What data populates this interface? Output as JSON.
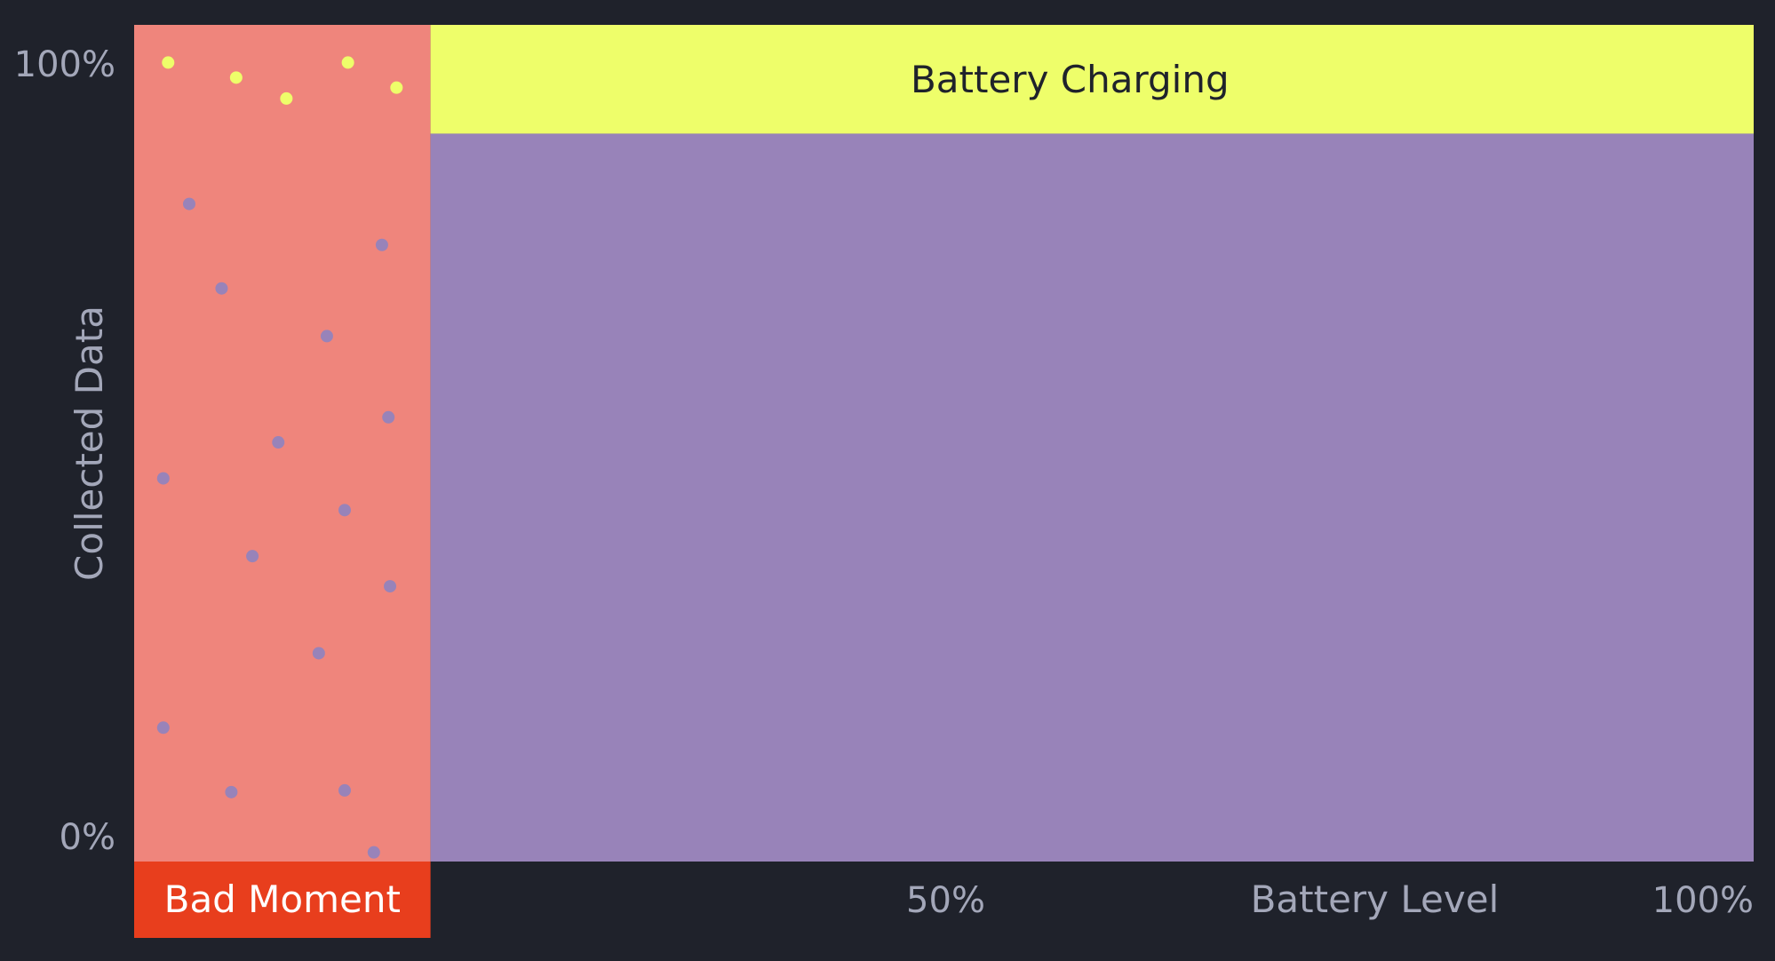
{
  "chart_data": {
    "type": "scatter",
    "xlabel": "Battery Level",
    "ylabel": "Collected Data",
    "xlim": [
      0,
      100
    ],
    "ylim": [
      0,
      100
    ],
    "x_ticks": [
      "50%",
      "100%"
    ],
    "y_ticks": [
      "100%",
      "0%"
    ],
    "regions": [
      {
        "name": "Bad Moment",
        "x_range": [
          0,
          18.3
        ],
        "y_range": [
          0,
          100
        ],
        "color": "#ef857c"
      },
      {
        "name": "Battery Charging",
        "x_range": [
          18.3,
          100
        ],
        "y_range": [
          87,
          100
        ],
        "color": "#eefe6a"
      },
      {
        "name": "",
        "x_range": [
          18.3,
          100
        ],
        "y_range": [
          0,
          87
        ],
        "color": "#9883b9"
      }
    ],
    "bad_moment_label_color": "#e83e1d",
    "series": [
      {
        "color": "#eefe6a",
        "points": [
          [
            2.1,
            95.5
          ],
          [
            6.3,
            93.7
          ],
          [
            9.4,
            91.2
          ],
          [
            13.2,
            95.5
          ],
          [
            16.2,
            92.5
          ]
        ]
      },
      {
        "color": "#9883b9",
        "points": [
          [
            3.4,
            78.6
          ],
          [
            15.3,
            73.7
          ],
          [
            5.4,
            68.5
          ],
          [
            11.9,
            62.8
          ],
          [
            15.7,
            53.1
          ],
          [
            8.9,
            50.1
          ],
          [
            1.8,
            45.8
          ],
          [
            13.0,
            42.0
          ],
          [
            7.3,
            36.5
          ],
          [
            15.8,
            32.9
          ],
          [
            11.4,
            24.9
          ],
          [
            1.8,
            16.0
          ],
          [
            6.0,
            8.3
          ],
          [
            13.0,
            8.5
          ],
          [
            14.8,
            1.1
          ]
        ]
      }
    ]
  }
}
